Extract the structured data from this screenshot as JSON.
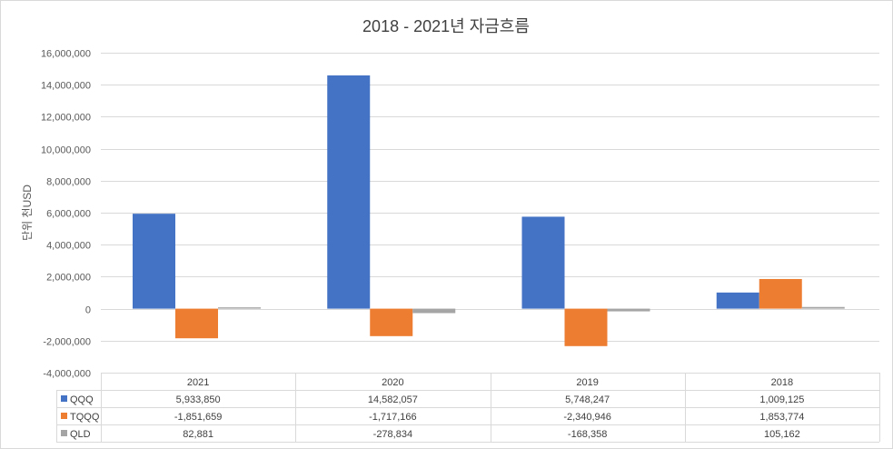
{
  "chart_data": {
    "type": "bar",
    "title": "2018 - 2021년 자금흐름",
    "ylabel": "단위 천USD",
    "xlabel": "",
    "ylim": [
      -4000000,
      16000000
    ],
    "yticks": [
      -4000000,
      -2000000,
      0,
      2000000,
      4000000,
      6000000,
      8000000,
      10000000,
      12000000,
      14000000,
      16000000
    ],
    "ytick_labels": [
      "-4,000,000",
      "-2,000,000",
      "0",
      "2,000,000",
      "4,000,000",
      "6,000,000",
      "8,000,000",
      "10,000,000",
      "12,000,000",
      "14,000,000",
      "16,000,000"
    ],
    "grid": true,
    "legend": "data-table",
    "categories": [
      "2021",
      "2020",
      "2019",
      "2018"
    ],
    "series": [
      {
        "name": "QQQ",
        "color": "#4472C4",
        "values": [
          5933850,
          14582057,
          5748247,
          1009125
        ],
        "labels": [
          "5,933,850",
          "14,582,057",
          "5,748,247",
          "1,009,125"
        ]
      },
      {
        "name": "TQQQ",
        "color": "#ED7D31",
        "values": [
          -1851659,
          -1717166,
          -2340946,
          1853774
        ],
        "labels": [
          "-1,851,659",
          "-1,717,166",
          "-2,340,946",
          "1,853,774"
        ]
      },
      {
        "name": "QLD",
        "color": "#A5A5A5",
        "values": [
          82881,
          -278834,
          -168358,
          105162
        ],
        "labels": [
          "82,881",
          "-278,834",
          "-168,358",
          "105,162"
        ]
      }
    ]
  }
}
